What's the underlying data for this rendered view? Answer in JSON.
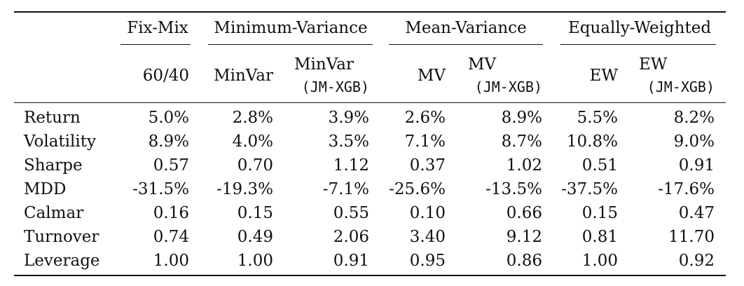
{
  "groups": [
    {
      "label": "Fix-Mix"
    },
    {
      "label": "Minimum-Variance"
    },
    {
      "label": "Mean-Variance"
    },
    {
      "label": "Equally-Weighted"
    }
  ],
  "columns": [
    {
      "line1": "",
      "line2": "60/40"
    },
    {
      "line1": "",
      "line2": "MinVar"
    },
    {
      "line1": "MinVar",
      "line2": "(JM-XGB)"
    },
    {
      "line1": "",
      "line2": "MV"
    },
    {
      "line1": "MV",
      "line2": "(JM-XGB)"
    },
    {
      "line1": "",
      "line2": "EW"
    },
    {
      "line1": "EW",
      "line2": "(JM-XGB)"
    }
  ],
  "rows": [
    {
      "label": "Return",
      "values": [
        "5.0%",
        "2.8%",
        "3.9%",
        "2.6%",
        "8.9%",
        "5.5%",
        "8.2%"
      ]
    },
    {
      "label": "Volatility",
      "values": [
        "8.9%",
        "4.0%",
        "3.5%",
        "7.1%",
        "8.7%",
        "10.8%",
        "9.0%"
      ]
    },
    {
      "label": "Sharpe",
      "values": [
        "0.57",
        "0.70",
        "1.12",
        "0.37",
        "1.02",
        "0.51",
        "0.91"
      ]
    },
    {
      "label": "MDD",
      "values": [
        "-31.5%",
        "-19.3%",
        "-7.1%",
        "-25.6%",
        "-13.5%",
        "-37.5%",
        "-17.6%"
      ]
    },
    {
      "label": "Calmar",
      "values": [
        "0.16",
        "0.15",
        "0.55",
        "0.10",
        "0.66",
        "0.15",
        "0.47"
      ]
    },
    {
      "label": "Turnover",
      "values": [
        "0.74",
        "0.49",
        "2.06",
        "3.40",
        "9.12",
        "0.81",
        "11.70"
      ]
    },
    {
      "label": "Leverage",
      "values": [
        "1.00",
        "1.00",
        "0.91",
        "0.95",
        "0.86",
        "1.00",
        "0.92"
      ]
    }
  ]
}
